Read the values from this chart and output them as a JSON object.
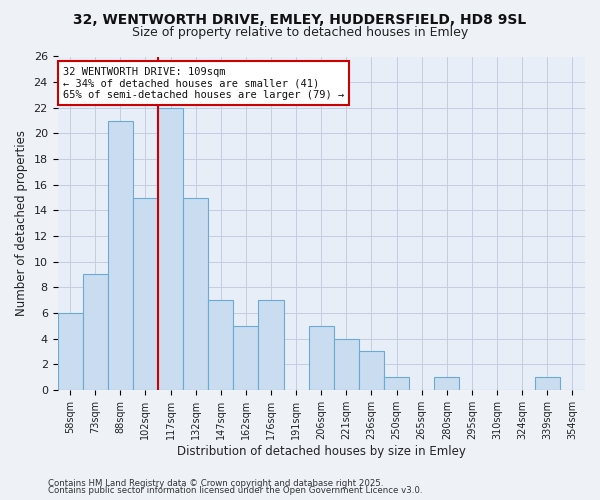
{
  "title": "32, WENTWORTH DRIVE, EMLEY, HUDDERSFIELD, HD8 9SL",
  "subtitle": "Size of property relative to detached houses in Emley",
  "xlabel": "Distribution of detached houses by size in Emley",
  "ylabel": "Number of detached properties",
  "categories": [
    "58sqm",
    "73sqm",
    "88sqm",
    "102sqm",
    "117sqm",
    "132sqm",
    "147sqm",
    "162sqm",
    "176sqm",
    "191sqm",
    "206sqm",
    "221sqm",
    "236sqm",
    "250sqm",
    "265sqm",
    "280sqm",
    "295sqm",
    "310sqm",
    "324sqm",
    "339sqm",
    "354sqm"
  ],
  "values": [
    6,
    9,
    21,
    15,
    22,
    15,
    7,
    5,
    7,
    0,
    5,
    4,
    3,
    1,
    0,
    1,
    0,
    0,
    0,
    1,
    0
  ],
  "bar_color": "#c9dcf0",
  "bar_edge_color": "#6aaad4",
  "vline_x_idx": 3.5,
  "vline_color": "#cc0000",
  "ylim": [
    0,
    26
  ],
  "yticks": [
    0,
    2,
    4,
    6,
    8,
    10,
    12,
    14,
    16,
    18,
    20,
    22,
    24,
    26
  ],
  "annotation_text": "32 WENTWORTH DRIVE: 109sqm\n← 34% of detached houses are smaller (41)\n65% of semi-detached houses are larger (79) →",
  "footer1": "Contains HM Land Registry data © Crown copyright and database right 2025.",
  "footer2": "Contains public sector information licensed under the Open Government Licence v3.0.",
  "fig_bg_color": "#eef2f7",
  "plot_bg_color": "#e8eef7",
  "grid_color": "#c0cfdf"
}
